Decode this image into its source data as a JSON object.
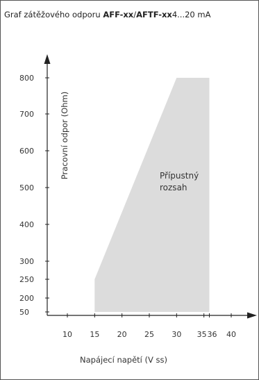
{
  "title": {
    "prefix": "Graf zátěžového odporu",
    "model_a": "AFF-xx",
    "separator": "/",
    "model_b": "AFTF-xx",
    "suffix": "4...20 mA"
  },
  "chart_data": {
    "type": "area",
    "title": "Graf zátěžového odporu AFF-xx / AFTF-xx 4...20 mA",
    "xlabel": "Napájecí napětí (V ss)",
    "ylabel": "Pracovní odpor (Ohm)",
    "x_ticks": [
      10,
      15,
      20,
      25,
      30,
      35,
      36,
      40
    ],
    "y_ticks": [
      50,
      200,
      250,
      300,
      400,
      500,
      600,
      700,
      800
    ],
    "region": {
      "label_line1": "Přípustný",
      "label_line2": "rozsah",
      "color": "#dcdcdc",
      "polygon": [
        {
          "x": 15,
          "y": 50
        },
        {
          "x": 15,
          "y": 250
        },
        {
          "x": 30,
          "y": 800
        },
        {
          "x": 36,
          "y": 800
        },
        {
          "x": 36,
          "y": 50
        }
      ]
    },
    "grid": false
  }
}
